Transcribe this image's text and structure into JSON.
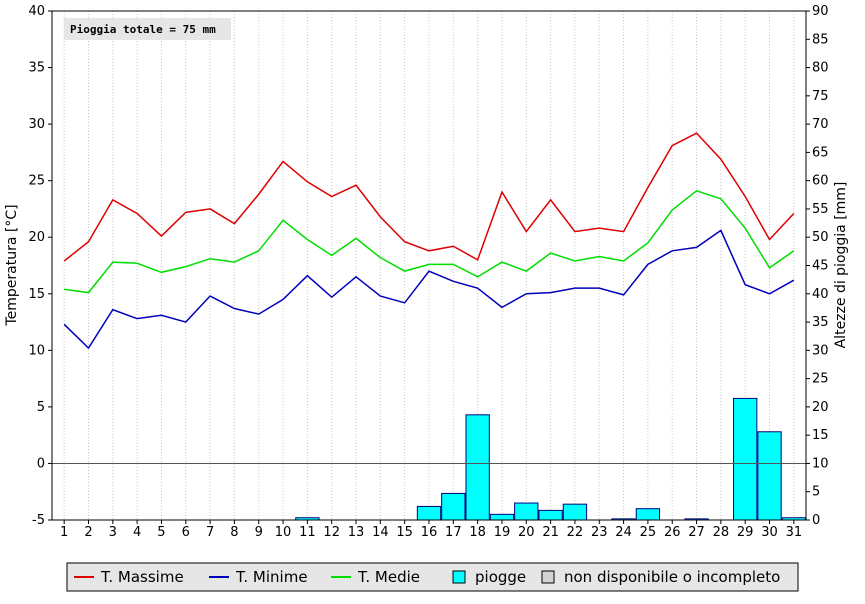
{
  "chart_data": {
    "type": "line",
    "info_box": "Pioggia totale = 75 mm",
    "x": [
      1,
      2,
      3,
      4,
      5,
      6,
      7,
      8,
      9,
      10,
      11,
      12,
      13,
      14,
      15,
      16,
      17,
      18,
      19,
      20,
      21,
      22,
      23,
      24,
      25,
      26,
      27,
      28,
      29,
      30,
      31
    ],
    "x_ticks": [
      "1",
      "2",
      "3",
      "4",
      "5",
      "6",
      "7",
      "8",
      "9",
      "10",
      "11",
      "12",
      "13",
      "14",
      "15",
      "16",
      "17",
      "18",
      "19",
      "20",
      "21",
      "22",
      "23",
      "24",
      "25",
      "26",
      "27",
      "28",
      "29",
      "30",
      "31"
    ],
    "ylabel": "Temperatura [°C]",
    "ylim": [
      -5,
      40
    ],
    "y_ticks": [
      "-5",
      "0",
      "5",
      "10",
      "15",
      "20",
      "25",
      "30",
      "35",
      "40"
    ],
    "y2label": "Altezze di pioggia [mm]",
    "y2lim": [
      0,
      90
    ],
    "y2_ticks": [
      "0",
      "5",
      "10",
      "15",
      "20",
      "25",
      "30",
      "35",
      "40",
      "45",
      "50",
      "55",
      "60",
      "65",
      "70",
      "75",
      "80",
      "85",
      "90"
    ],
    "grid": "vertical",
    "legend_position": "bottom",
    "series": [
      {
        "name": "T. Massime",
        "color": "#dd0000",
        "axis": "left",
        "values": [
          17.9,
          19.6,
          23.3,
          22.1,
          20.1,
          22.2,
          22.5,
          21.2,
          23.8,
          26.7,
          24.9,
          23.6,
          24.6,
          21.8,
          19.6,
          18.8,
          19.2,
          18.0,
          24.0,
          20.5,
          23.3,
          20.5,
          20.8,
          20.5,
          24.4,
          28.1,
          29.2,
          26.9,
          23.6,
          19.8,
          22.1
        ]
      },
      {
        "name": "T. Minime",
        "color": "#0000bb",
        "axis": "left",
        "values": [
          12.3,
          10.2,
          13.6,
          12.8,
          13.1,
          12.5,
          14.8,
          13.7,
          13.2,
          14.5,
          16.6,
          14.7,
          16.5,
          14.8,
          14.2,
          17.0,
          16.1,
          15.5,
          13.8,
          15.0,
          15.1,
          15.5,
          15.5,
          14.9,
          17.6,
          18.8,
          19.1,
          20.6,
          15.8,
          15.0,
          16.2
        ]
      },
      {
        "name": "T. Medie",
        "color": "#00dd00",
        "axis": "left",
        "values": [
          15.4,
          15.1,
          17.8,
          17.7,
          16.9,
          17.4,
          18.1,
          17.8,
          18.8,
          21.5,
          19.8,
          18.4,
          19.9,
          18.2,
          17.0,
          17.6,
          17.6,
          16.5,
          17.8,
          17.0,
          18.6,
          17.9,
          18.3,
          17.9,
          19.5,
          22.4,
          24.1,
          23.4,
          20.8,
          17.3,
          18.8
        ]
      },
      {
        "name": "piogge",
        "color": "#00ffff",
        "axis": "right",
        "kind": "bar",
        "values": [
          0,
          0,
          0,
          0,
          0,
          0,
          0,
          0,
          0,
          0,
          0.4,
          0,
          0,
          0,
          0,
          2.4,
          4.7,
          18.6,
          1.0,
          3.0,
          1.7,
          2.8,
          0,
          0.2,
          2.0,
          0,
          0.2,
          0,
          21.5,
          15.6,
          0.4
        ]
      }
    ],
    "legend": [
      {
        "label": "T. Massime",
        "kind": "line",
        "color": "#dd0000"
      },
      {
        "label": "T. Minime",
        "kind": "line",
        "color": "#0000bb"
      },
      {
        "label": "T. Medie",
        "kind": "line",
        "color": "#00dd00"
      },
      {
        "label": "piogge",
        "kind": "box",
        "color": "#00ffff"
      },
      {
        "label": "non disponibile o incompleto",
        "kind": "box",
        "color": "#d3d3d3"
      }
    ]
  }
}
